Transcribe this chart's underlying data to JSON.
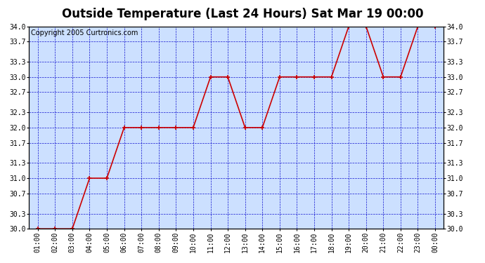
{
  "title": "Outside Temperature (Last 24 Hours) Sat Mar 19 00:00",
  "copyright": "Copyright 2005 Curtronics.com",
  "x_labels": [
    "01:00",
    "02:00",
    "03:00",
    "04:00",
    "05:00",
    "06:00",
    "07:00",
    "08:00",
    "09:00",
    "10:00",
    "11:00",
    "12:00",
    "13:00",
    "14:00",
    "15:00",
    "16:00",
    "17:00",
    "18:00",
    "19:00",
    "20:00",
    "21:00",
    "22:00",
    "23:00",
    "00:00"
  ],
  "x_values": [
    1,
    2,
    3,
    4,
    5,
    6,
    7,
    8,
    9,
    10,
    11,
    12,
    13,
    14,
    15,
    16,
    17,
    18,
    19,
    20,
    21,
    22,
    23,
    24
  ],
  "y_values": [
    30.0,
    30.0,
    30.0,
    31.0,
    31.0,
    32.0,
    32.0,
    32.0,
    32.0,
    32.0,
    33.0,
    33.0,
    32.0,
    32.0,
    33.0,
    33.0,
    33.0,
    33.0,
    34.0,
    34.0,
    33.0,
    33.0,
    34.0,
    34.0
  ],
  "ylim": [
    30.0,
    34.0
  ],
  "yticks": [
    30.0,
    30.3,
    30.7,
    31.0,
    31.3,
    31.7,
    32.0,
    32.3,
    32.7,
    33.0,
    33.3,
    33.7,
    34.0
  ],
  "line_color": "#cc0000",
  "marker_color": "#cc0000",
  "bg_color": "#cce0ff",
  "grid_color": "#0000cc",
  "outer_bg": "#ffffff",
  "title_fontsize": 12,
  "tick_fontsize": 7,
  "copyright_fontsize": 7
}
